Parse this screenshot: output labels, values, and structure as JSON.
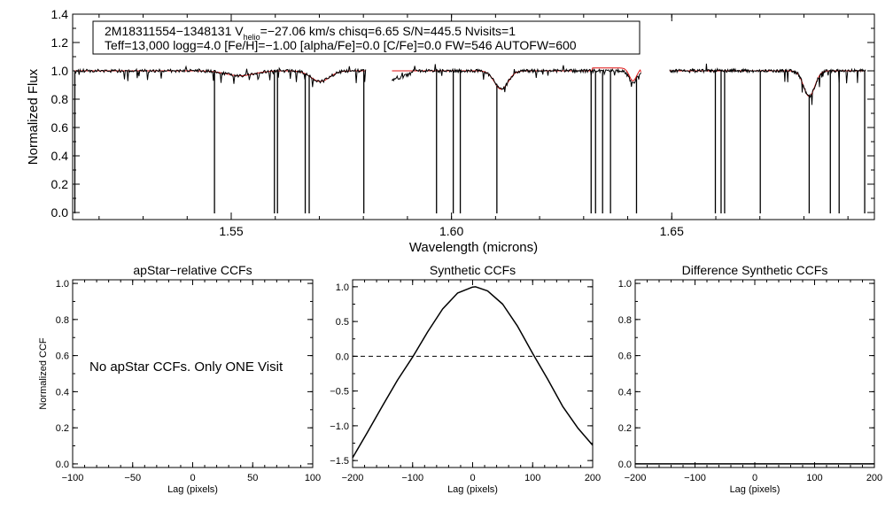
{
  "chart_data": [
    {
      "type": "line",
      "title": "",
      "xlabel": "Wavelength (microns)",
      "ylabel": "Normalized Flux",
      "xlim": [
        1.514,
        1.696
      ],
      "ylim": [
        -0.05,
        1.4
      ],
      "xticks": [
        "1.55",
        "1.60",
        "1.65"
      ],
      "xtick_values": [
        1.55,
        1.6,
        1.65
      ],
      "yticks": [
        "0.0",
        "0.2",
        "0.4",
        "0.6",
        "0.8",
        "1.0",
        "1.2",
        "1.4"
      ],
      "ytick_values": [
        0.0,
        0.2,
        0.4,
        0.6,
        0.8,
        1.0,
        1.2,
        1.4
      ],
      "info_line1": {
        "id": "2M18311554−1348131",
        "v": "V",
        "v_sub": "helio",
        "rest": "=−27.06 km/s  chisq=6.65  S/N=445.5  Nvisits=1"
      },
      "info_line2": "Teff=13,000 logg=4.0 [Fe/H]=−1.00 [alpha/Fe]=0.0 [C/Fe]=0.0 FW=546 AUTOFW=600",
      "chips": [
        [
          1.5145,
          1.5805
        ],
        [
          1.5865,
          1.643
        ],
        [
          1.6495,
          1.694
        ]
      ],
      "spikes": [
        1.5145,
        1.5462,
        1.5598,
        1.5605,
        1.5668,
        1.5677,
        1.5801,
        1.5966,
        1.6004,
        1.602,
        1.6103,
        1.6317,
        1.6327,
        1.6343,
        1.6361,
        1.642,
        1.6599,
        1.6612,
        1.662,
        1.6701,
        1.6812,
        1.686,
        1.688,
        1.6938
      ],
      "absorption": [
        {
          "center": 1.552,
          "depth": 0.035,
          "width": 0.0045
        },
        {
          "center": 1.5702,
          "depth": 0.075,
          "width": 0.003
        },
        {
          "center": 1.6113,
          "depth": 0.13,
          "width": 0.0022
        },
        {
          "center": 1.6412,
          "depth": 0.09,
          "width": 0.0012
        },
        {
          "center": 1.6812,
          "depth": 0.18,
          "width": 0.0018
        }
      ],
      "series": [
        {
          "name": "Observed spectrum",
          "color": "#000000"
        },
        {
          "name": "Model spectrum",
          "color": "#e01010"
        }
      ]
    },
    {
      "type": "line",
      "title": "apStar−relative CCFs",
      "xlabel": "Lag (pixels)",
      "ylabel": "Normalized CCF",
      "xlim": [
        -100,
        100
      ],
      "ylim": [
        -0.02,
        1.02
      ],
      "xticks": [
        "−100",
        "−50",
        "0",
        "50",
        "100"
      ],
      "xtick_values": [
        -100,
        -50,
        0,
        50,
        100
      ],
      "yticks": [
        "0.0",
        "0.2",
        "0.4",
        "0.6",
        "0.8",
        "1.0"
      ],
      "ytick_values": [
        0.0,
        0.2,
        0.4,
        0.6,
        0.8,
        1.0
      ],
      "annotation": "No apStar CCFs.  Only ONE Visit",
      "series": []
    },
    {
      "type": "line",
      "title": "Synthetic CCFs",
      "xlabel": "Lag (pixels)",
      "ylabel": "",
      "xlim": [
        -200,
        200
      ],
      "ylim": [
        -1.6,
        1.1
      ],
      "xticks": [
        "−200",
        "−100",
        "0",
        "100",
        "200"
      ],
      "xtick_values": [
        -200,
        -100,
        0,
        100,
        200
      ],
      "yticks": [
        "−1.5",
        "−1.0",
        "−0.5",
        "0.0",
        "0.5",
        "1.0"
      ],
      "ytick_values": [
        -1.5,
        -1.0,
        -0.5,
        0.0,
        0.5,
        1.0
      ],
      "zero_line": 0.0,
      "series": [
        {
          "name": "CCF",
          "color": "#000000",
          "x": [
            -200,
            -175,
            -150,
            -125,
            -100,
            -75,
            -50,
            -25,
            0,
            5,
            25,
            50,
            75,
            100,
            125,
            150,
            175,
            200
          ],
          "y": [
            -1.46,
            -1.09,
            -0.71,
            -0.34,
            -0.01,
            0.35,
            0.68,
            0.91,
            0.995,
            1.0,
            0.94,
            0.75,
            0.43,
            0.04,
            -0.33,
            -0.72,
            -1.03,
            -1.28
          ]
        }
      ]
    },
    {
      "type": "line",
      "title": "Difference Synthetic CCFs",
      "xlabel": "Lag (pixels)",
      "ylabel": "",
      "xlim": [
        -200,
        200
      ],
      "ylim": [
        -0.02,
        1.02
      ],
      "xticks": [
        "−200",
        "−100",
        "0",
        "100",
        "200"
      ],
      "xtick_values": [
        -200,
        -100,
        0,
        100,
        200
      ],
      "yticks": [
        "0.0",
        "0.2",
        "0.4",
        "0.6",
        "0.8",
        "1.0"
      ],
      "ytick_values": [
        0.0,
        0.2,
        0.4,
        0.6,
        0.8,
        1.0
      ],
      "series": [
        {
          "name": "Difference CCF",
          "color": "#000000",
          "x": [
            -200,
            200
          ],
          "y": [
            0.0,
            0.0
          ]
        }
      ]
    }
  ]
}
